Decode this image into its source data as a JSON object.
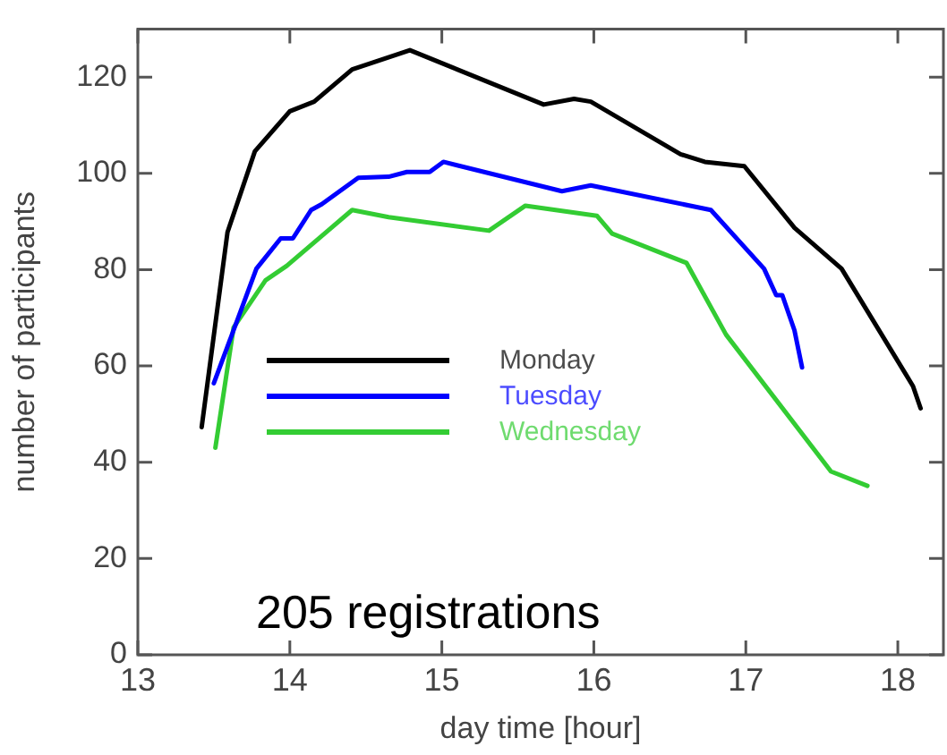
{
  "chart_data": {
    "type": "line",
    "xlabel": "day time [hour]",
    "ylabel": "number of participants",
    "annotations": [
      "205 registrations"
    ],
    "xlim": [
      13,
      18.3
    ],
    "xticks": [
      13,
      14,
      15,
      16,
      17,
      18
    ],
    "ylim": [
      0,
      130
    ],
    "yticks": [
      0,
      20,
      40,
      60,
      80,
      100,
      120
    ],
    "grid": false,
    "legend": "left",
    "marker": "none",
    "line_style": "solid",
    "series": [
      {
        "name": "Monday",
        "color": "#000000",
        "x": [
          13.42,
          13.59,
          13.77,
          14.0,
          14.16,
          14.41,
          14.79,
          15.67,
          15.87,
          15.98,
          16.57,
          16.73,
          16.99,
          17.32,
          17.63,
          18.1,
          18.15
        ],
        "values": [
          47.3,
          87.8,
          104.6,
          112.9,
          114.9,
          121.6,
          125.6,
          114.3,
          115.5,
          114.9,
          104.0,
          102.4,
          101.5,
          88.7,
          80.2,
          55.8,
          51.2
        ]
      },
      {
        "name": "Tuesday",
        "color": "#0000ff",
        "x": [
          13.5,
          13.78,
          13.94,
          14.02,
          14.14,
          14.21,
          14.45,
          14.65,
          14.77,
          14.92,
          15.01,
          15.79,
          15.98,
          16.77,
          17.12,
          17.2,
          17.24,
          17.32,
          17.37
        ],
        "values": [
          56.4,
          80.2,
          86.5,
          86.5,
          92.4,
          93.6,
          99.1,
          99.3,
          100.3,
          100.3,
          102.4,
          96.3,
          97.5,
          92.4,
          80.2,
          74.7,
          74.7,
          67.4,
          59.7
        ]
      },
      {
        "name": "Wednesday",
        "color": "#33cc33",
        "x": [
          13.51,
          13.63,
          13.84,
          13.98,
          14.41,
          14.65,
          15.31,
          15.55,
          16.02,
          16.12,
          16.61,
          16.87,
          17.56,
          17.8
        ],
        "values": [
          43.0,
          68.0,
          77.8,
          80.8,
          92.4,
          90.9,
          88.1,
          93.3,
          91.2,
          87.5,
          81.4,
          66.5,
          38.1,
          35.1
        ]
      }
    ]
  }
}
